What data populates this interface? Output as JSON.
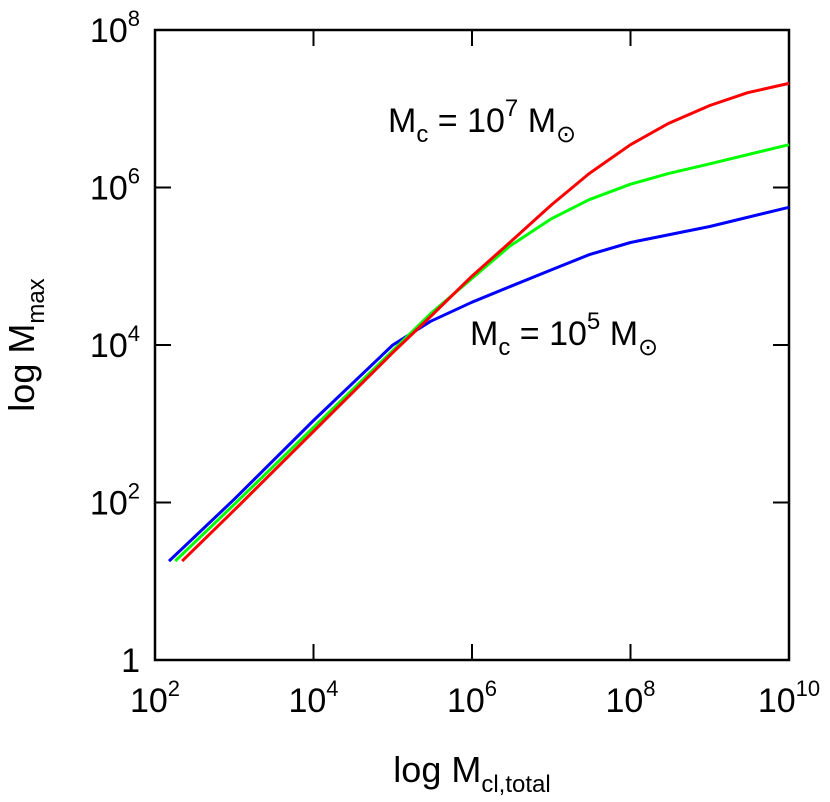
{
  "chart_data": {
    "type": "line",
    "xlabel": {
      "main": "log M",
      "sub": "cl,total"
    },
    "ylabel": {
      "main": "log M",
      "sub": "max"
    },
    "x_scale": "log",
    "y_scale": "log",
    "xlim": [
      100,
      10000000000
    ],
    "ylim": [
      1,
      100000000
    ],
    "x_ticks": [
      {
        "value": 100,
        "base": "10",
        "exp": "2"
      },
      {
        "value": 10000,
        "base": "10",
        "exp": "4"
      },
      {
        "value": 1000000,
        "base": "10",
        "exp": "6"
      },
      {
        "value": 100000000,
        "base": "10",
        "exp": "8"
      },
      {
        "value": 10000000000,
        "base": "10",
        "exp": "10"
      }
    ],
    "y_ticks": [
      {
        "value": 1,
        "base": "1",
        "exp": ""
      },
      {
        "value": 100,
        "base": "10",
        "exp": "2"
      },
      {
        "value": 10000,
        "base": "10",
        "exp": "4"
      },
      {
        "value": 1000000,
        "base": "10",
        "exp": "6"
      },
      {
        "value": 100000000,
        "base": "10",
        "exp": "8"
      }
    ],
    "grid": false,
    "series": [
      {
        "color": "#0000ff",
        "x": [
          150,
          1000,
          10000,
          100000,
          300000,
          1000000,
          3000000,
          10000000,
          30000000,
          100000000,
          1000000000,
          10000000000
        ],
        "y": [
          18,
          110,
          1100,
          10000,
          20000,
          35000,
          55000,
          90000,
          140000,
          200000,
          320000,
          560000
        ]
      },
      {
        "color": "#00ff00",
        "x": [
          180,
          1000,
          10000,
          100000,
          300000,
          1000000,
          3000000,
          10000000,
          30000000,
          100000000,
          300000000,
          1000000000,
          10000000000
        ],
        "y": [
          18,
          95,
          900,
          8500,
          25000,
          70000,
          180000,
          400000,
          700000,
          1100000,
          1500000,
          2000000,
          3500000
        ]
      },
      {
        "color": "#ff0000",
        "x": [
          220,
          1000,
          10000,
          100000,
          300000,
          1000000,
          3000000,
          10000000,
          30000000,
          100000000,
          300000000,
          1000000000,
          3000000000,
          10000000000
        ],
        "y": [
          18,
          80,
          800,
          8000,
          23000,
          75000,
          200000,
          600000,
          1500000,
          3500000,
          6500000,
          11000000,
          16000000,
          21000000
        ]
      }
    ],
    "annotations": [
      {
        "main": "M",
        "sub": "c",
        "mid": " = 10",
        "exp": "7",
        "tail": " M",
        "sym": "⊙"
      },
      {
        "main": "M",
        "sub": "c",
        "mid": " = 10",
        "exp": "5",
        "tail": " M",
        "sym": "⊙"
      }
    ]
  }
}
